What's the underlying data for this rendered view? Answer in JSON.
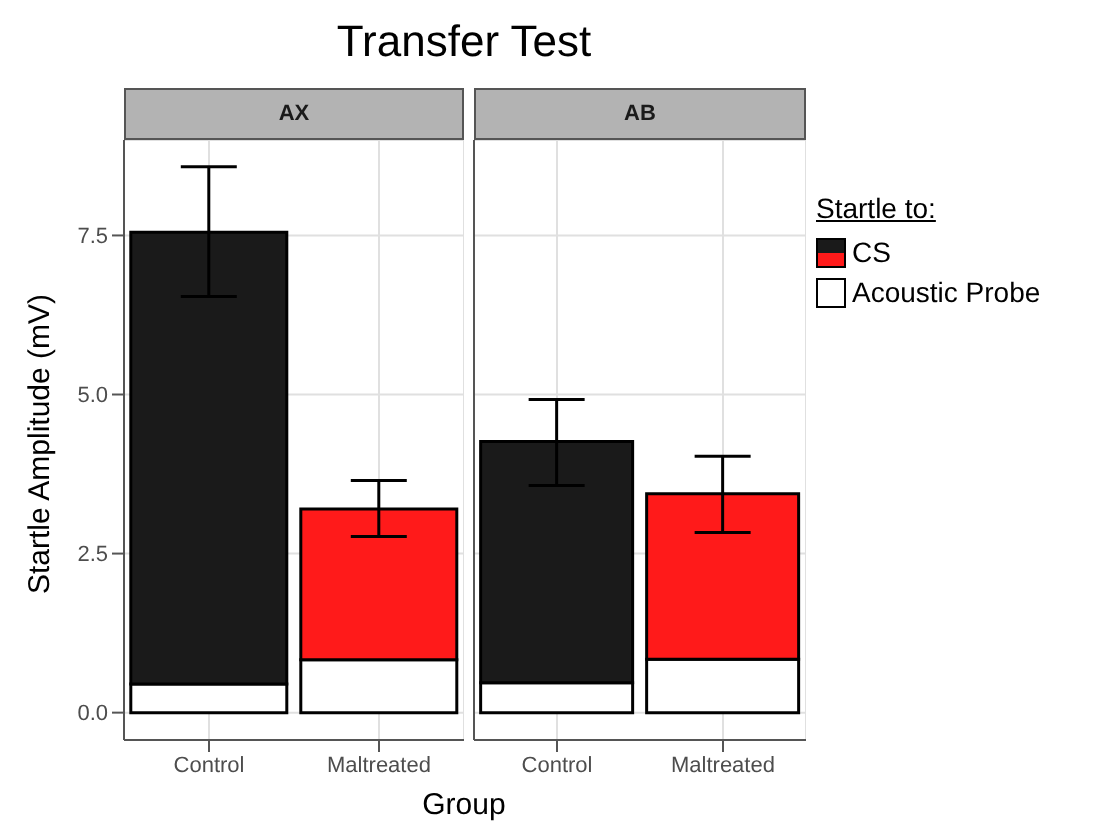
{
  "chart_data": [
    {
      "type": "bar",
      "title": "Transfer Test",
      "subtitle": "AX",
      "xlabel": "Group",
      "legend_title": "Startle to:",
      "legend": "right",
      "ylabel": "Startle Amplitude (mV)",
      "categories": [
        "Control",
        "Maltreated"
      ],
      "stacked": true,
      "series": [
        {
          "name": "Acoustic Probe",
          "color": "#ffffff",
          "values": [
            0.45,
            0.83
          ]
        },
        {
          "name": "CS",
          "colors": [
            "#1a1a1a",
            "#ff1a1a"
          ],
          "values": [
            7.1,
            2.37
          ],
          "errors": [
            [
              6.54,
              8.58
            ],
            [
              2.77,
              3.65
            ]
          ]
        }
      ],
      "ylim": [
        -0.43,
        9.0
      ],
      "yticks": [
        {
          "value": 0,
          "label": "0.0"
        },
        {
          "value": 2.5,
          "label": "2.5"
        },
        {
          "value": 5,
          "label": "5.0"
        },
        {
          "value": 7.5,
          "label": "7.5"
        }
      ],
      "grid": true
    },
    {
      "type": "bar",
      "subtitle": "AB",
      "categories": [
        "Control",
        "Maltreated"
      ],
      "stacked": true,
      "tick_labels": "x",
      "series": [
        {
          "color": "#ffffff",
          "values": [
            0.47,
            0.84
          ]
        },
        {
          "colors": [
            "#1a1a1a",
            "#ff1a1a"
          ],
          "values": [
            3.79,
            2.6
          ],
          "errors": [
            [
              3.57,
              4.92
            ],
            [
              2.83,
              4.03
            ]
          ]
        }
      ],
      "ylim": [
        -0.43,
        9.0
      ],
      "yticks": [
        0,
        2.5,
        5,
        7.5
      ],
      "grid": true
    }
  ]
}
